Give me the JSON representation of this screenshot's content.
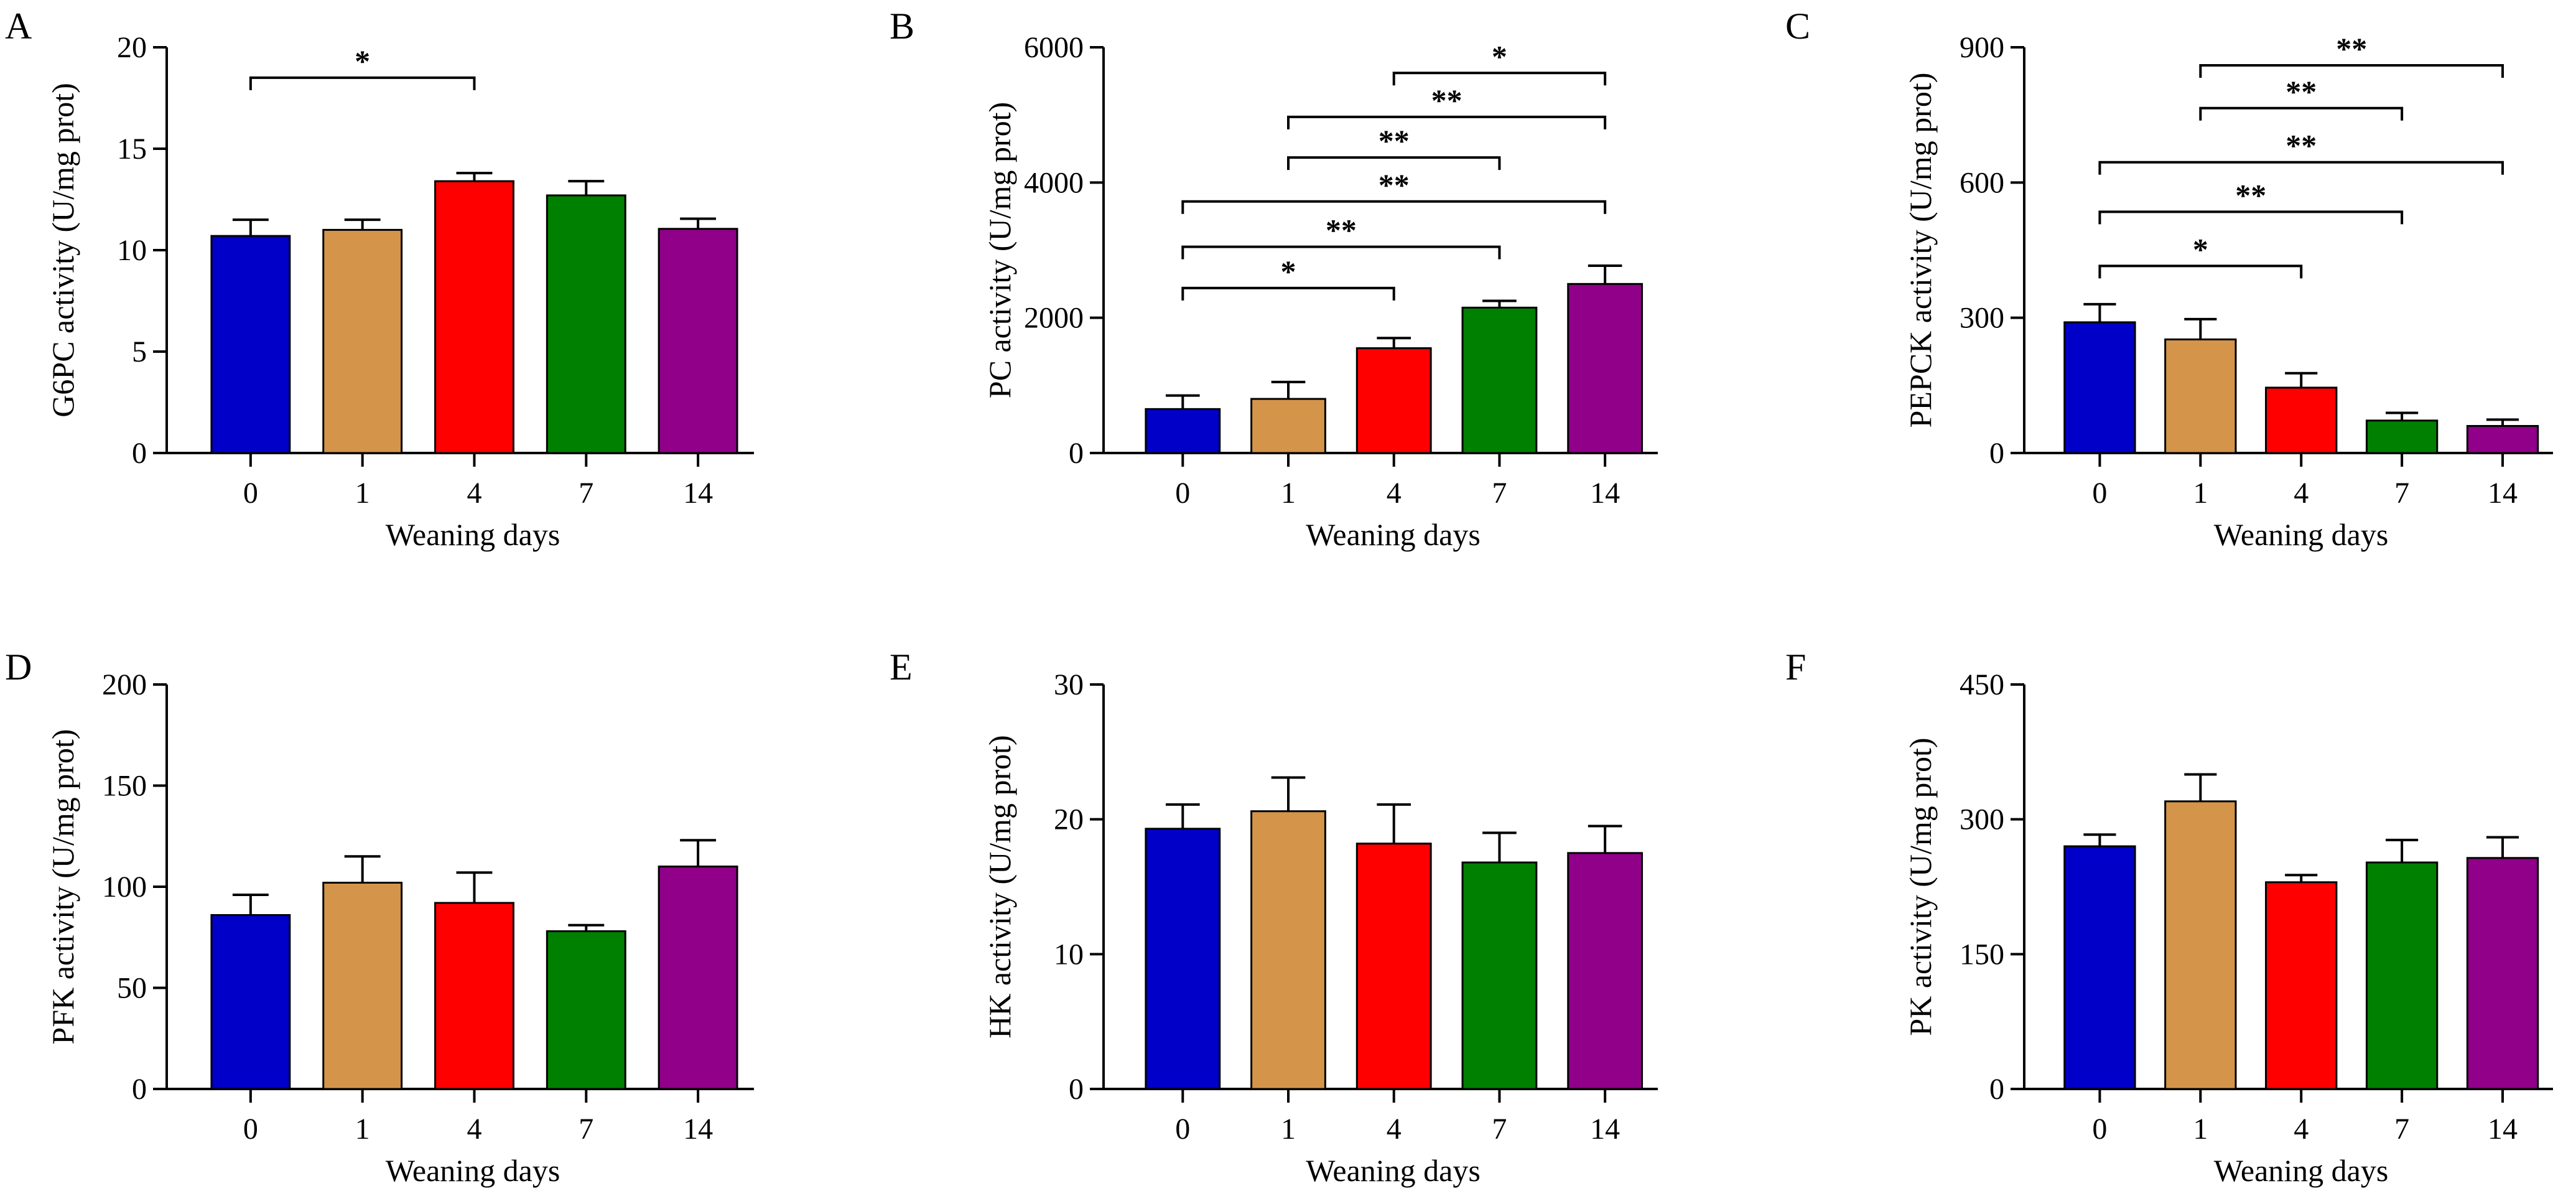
{
  "colors": {
    "bars": [
      "#0000c8",
      "#d4944a",
      "#ff0000",
      "#008000",
      "#900088"
    ],
    "ink": "#000000"
  },
  "chart_data": [
    {
      "panel": "A",
      "type": "bar",
      "categories": [
        "0",
        "1",
        "4",
        "7",
        "14"
      ],
      "values": [
        10.7,
        11.0,
        13.4,
        12.7,
        11.05
      ],
      "errors": [
        0.8,
        0.5,
        0.4,
        0.7,
        0.5
      ],
      "ylabel": "G6PC activity (U/mg prot)",
      "xlabel": "Weaning days",
      "ylim": [
        0,
        20
      ],
      "yticks": [
        "0",
        "5",
        "10",
        "15",
        "20"
      ],
      "significance": [
        {
          "from": 0,
          "to": 2,
          "label": "*",
          "y": 18.5
        }
      ]
    },
    {
      "panel": "B",
      "type": "bar",
      "categories": [
        "0",
        "1",
        "4",
        "7",
        "14"
      ],
      "values": [
        650,
        800,
        1550,
        2150,
        2500
      ],
      "errors": [
        200,
        250,
        150,
        100,
        270
      ],
      "ylabel": "PC activity (U/mg prot)",
      "xlabel": "Weaning days",
      "ylim": [
        0,
        6000
      ],
      "yticks": [
        "0",
        "2000",
        "4000",
        "6000"
      ],
      "significance": [
        {
          "from": 0,
          "to": 2,
          "label": "*",
          "y": 2440
        },
        {
          "from": 0,
          "to": 3,
          "label": "**",
          "y": 3050
        },
        {
          "from": 0,
          "to": 4,
          "label": "**",
          "y": 3720
        },
        {
          "from": 1,
          "to": 3,
          "label": "**",
          "y": 4370
        },
        {
          "from": 1,
          "to": 4,
          "label": "**",
          "y": 4970
        },
        {
          "from": 2,
          "to": 4,
          "label": "*",
          "y": 5620
        }
      ]
    },
    {
      "panel": "C",
      "type": "bar",
      "categories": [
        "0",
        "1",
        "4",
        "7",
        "14"
      ],
      "values": [
        290,
        252,
        145,
        72,
        60
      ],
      "errors": [
        40,
        45,
        32,
        17,
        14
      ],
      "ylabel": "PEPCK activity (U/mg prot)",
      "xlabel": "Weaning days",
      "ylim": [
        0,
        900
      ],
      "yticks": [
        "0",
        "300",
        "600",
        "900"
      ],
      "significance": [
        {
          "from": 0,
          "to": 2,
          "label": "*",
          "y": 415
        },
        {
          "from": 0,
          "to": 3,
          "label": "**",
          "y": 535
        },
        {
          "from": 0,
          "to": 4,
          "label": "**",
          "y": 645
        },
        {
          "from": 1,
          "to": 3,
          "label": "**",
          "y": 765
        },
        {
          "from": 1,
          "to": 4,
          "label": "**",
          "y": 860
        }
      ]
    },
    {
      "panel": "D",
      "type": "bar",
      "categories": [
        "0",
        "1",
        "4",
        "7",
        "14"
      ],
      "values": [
        86,
        102,
        92,
        78,
        110
      ],
      "errors": [
        10,
        13,
        15,
        3,
        13
      ],
      "ylabel": "PFK activity (U/mg prot)",
      "xlabel": "Weaning days",
      "ylim": [
        0,
        200
      ],
      "yticks": [
        "0",
        "50",
        "100",
        "150",
        "200"
      ],
      "significance": []
    },
    {
      "panel": "E",
      "type": "bar",
      "categories": [
        "0",
        "1",
        "4",
        "7",
        "14"
      ],
      "values": [
        19.3,
        20.6,
        18.2,
        16.8,
        17.5
      ],
      "errors": [
        1.8,
        2.5,
        2.9,
        2.2,
        2.0
      ],
      "ylabel": "HK activity (U/mg prot)",
      "xlabel": "Weaning days",
      "ylim": [
        0,
        30
      ],
      "yticks": [
        "0",
        "10",
        "20",
        "30"
      ],
      "significance": []
    },
    {
      "panel": "F",
      "type": "bar",
      "categories": [
        "0",
        "1",
        "4",
        "7",
        "14"
      ],
      "values": [
        270,
        320,
        230,
        252,
        257
      ],
      "errors": [
        13,
        30,
        8,
        25,
        23
      ],
      "ylabel": "PK activity (U/mg prot)",
      "xlabel": "Weaning days",
      "ylim": [
        0,
        450
      ],
      "yticks": [
        "0",
        "150",
        "300",
        "450"
      ],
      "significance": []
    }
  ]
}
